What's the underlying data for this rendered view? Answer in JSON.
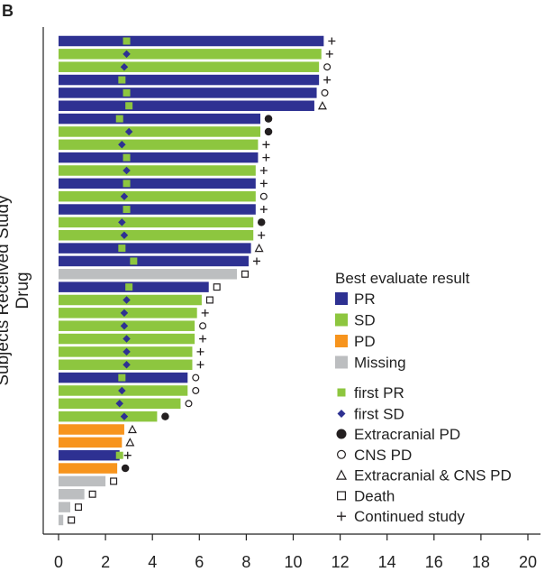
{
  "chart_data": {
    "type": "bar",
    "orientation": "horizontal",
    "panel_label": "B",
    "ylabel": "Subjects Received Study Drug",
    "xlabel": "",
    "xlim": [
      0,
      20
    ],
    "xticks": [
      0,
      2,
      4,
      6,
      8,
      10,
      12,
      14,
      16,
      18,
      20
    ],
    "grid": false,
    "legend_title": "Best evaluate result",
    "legend_position": "right",
    "colors": {
      "PR": "#2e3192",
      "SD": "#8dc63f",
      "PD": "#f7941d",
      "Missing": "#bcbec0",
      "first_PR": "#8dc63f",
      "first_SD": "#2e3192",
      "marker": "#231f20"
    },
    "legend": {
      "best": [
        {
          "key": "PR",
          "label": "PR"
        },
        {
          "key": "SD",
          "label": "SD"
        },
        {
          "key": "PD",
          "label": "PD"
        },
        {
          "key": "Missing",
          "label": "Missing"
        }
      ],
      "first": [
        {
          "key": "first_PR",
          "label": "first PR",
          "shape": "square"
        },
        {
          "key": "first_SD",
          "label": "first SD",
          "shape": "diamond"
        }
      ],
      "events": [
        {
          "key": "extracranial_pd",
          "label": "Extracranial PD",
          "shape": "filled-circle"
        },
        {
          "key": "cns_pd",
          "label": "CNS PD",
          "shape": "open-circle"
        },
        {
          "key": "both_pd",
          "label": "Extracranial & CNS PD",
          "shape": "open-triangle"
        },
        {
          "key": "death",
          "label": "Death",
          "shape": "open-square"
        },
        {
          "key": "continued",
          "label": "Continued study",
          "shape": "plus"
        }
      ]
    },
    "subjects": [
      {
        "best": "PR",
        "duration": 11.3,
        "first": "first_PR",
        "first_time": 2.9,
        "event": "continued"
      },
      {
        "best": "SD",
        "duration": 11.2,
        "first": "first_SD",
        "first_time": 2.9,
        "event": "continued"
      },
      {
        "best": "SD",
        "duration": 11.1,
        "first": "first_SD",
        "first_time": 2.8,
        "event": "cns_pd"
      },
      {
        "best": "PR",
        "duration": 11.1,
        "first": "first_PR",
        "first_time": 2.7,
        "event": "continued"
      },
      {
        "best": "PR",
        "duration": 11.0,
        "first": "first_PR",
        "first_time": 2.9,
        "event": "cns_pd"
      },
      {
        "best": "PR",
        "duration": 10.9,
        "first": "first_PR",
        "first_time": 3.0,
        "event": "both_pd"
      },
      {
        "best": "PR",
        "duration": 8.6,
        "first": "first_PR",
        "first_time": 2.6,
        "event": "extracranial_pd"
      },
      {
        "best": "SD",
        "duration": 8.6,
        "first": "first_SD",
        "first_time": 3.0,
        "event": "extracranial_pd"
      },
      {
        "best": "SD",
        "duration": 8.5,
        "first": "first_SD",
        "first_time": 2.7,
        "event": "continued"
      },
      {
        "best": "PR",
        "duration": 8.5,
        "first": "first_PR",
        "first_time": 2.9,
        "event": "continued"
      },
      {
        "best": "SD",
        "duration": 8.4,
        "first": "first_SD",
        "first_time": 2.9,
        "event": "continued"
      },
      {
        "best": "PR",
        "duration": 8.4,
        "first": "first_PR",
        "first_time": 2.9,
        "event": "continued"
      },
      {
        "best": "SD",
        "duration": 8.4,
        "first": "first_SD",
        "first_time": 2.8,
        "event": "cns_pd"
      },
      {
        "best": "PR",
        "duration": 8.4,
        "first": "first_PR",
        "first_time": 2.9,
        "event": "continued"
      },
      {
        "best": "SD",
        "duration": 8.3,
        "first": "first_SD",
        "first_time": 2.7,
        "event": "extracranial_pd"
      },
      {
        "best": "SD",
        "duration": 8.3,
        "first": "first_SD",
        "first_time": 2.8,
        "event": "continued"
      },
      {
        "best": "PR",
        "duration": 8.2,
        "first": "first_PR",
        "first_time": 2.7,
        "event": "both_pd"
      },
      {
        "best": "PR",
        "duration": 8.1,
        "first": "first_PR",
        "first_time": 3.2,
        "event": "continued"
      },
      {
        "best": "Missing",
        "duration": 7.6,
        "first": null,
        "first_time": null,
        "event": "death"
      },
      {
        "best": "PR",
        "duration": 6.4,
        "first": "first_PR",
        "first_time": 3.0,
        "event": "death"
      },
      {
        "best": "SD",
        "duration": 6.1,
        "first": "first_SD",
        "first_time": 2.9,
        "event": "death"
      },
      {
        "best": "SD",
        "duration": 5.9,
        "first": "first_SD",
        "first_time": 2.8,
        "event": "continued"
      },
      {
        "best": "SD",
        "duration": 5.8,
        "first": "first_SD",
        "first_time": 2.8,
        "event": "cns_pd"
      },
      {
        "best": "SD",
        "duration": 5.8,
        "first": "first_SD",
        "first_time": 2.9,
        "event": "continued"
      },
      {
        "best": "SD",
        "duration": 5.7,
        "first": "first_SD",
        "first_time": 2.9,
        "event": "continued"
      },
      {
        "best": "SD",
        "duration": 5.7,
        "first": "first_SD",
        "first_time": 2.9,
        "event": "continued"
      },
      {
        "best": "PR",
        "duration": 5.5,
        "first": "first_PR",
        "first_time": 2.7,
        "event": "cns_pd"
      },
      {
        "best": "SD",
        "duration": 5.5,
        "first": "first_SD",
        "first_time": 2.7,
        "event": "cns_pd"
      },
      {
        "best": "SD",
        "duration": 5.2,
        "first": "first_SD",
        "first_time": 2.6,
        "event": "cns_pd"
      },
      {
        "best": "SD",
        "duration": 4.2,
        "first": "first_SD",
        "first_time": 2.8,
        "event": "extracranial_pd"
      },
      {
        "best": "PD",
        "duration": 2.8,
        "first": null,
        "first_time": null,
        "event": "both_pd"
      },
      {
        "best": "PD",
        "duration": 2.7,
        "first": null,
        "first_time": null,
        "event": "both_pd"
      },
      {
        "best": "PR",
        "duration": 2.6,
        "first": "first_PR",
        "first_time": 2.6,
        "event": "continued"
      },
      {
        "best": "PD",
        "duration": 2.5,
        "first": null,
        "first_time": null,
        "event": "extracranial_pd"
      },
      {
        "best": "Missing",
        "duration": 2.0,
        "first": null,
        "first_time": null,
        "event": "death"
      },
      {
        "best": "Missing",
        "duration": 1.1,
        "first": null,
        "first_time": null,
        "event": "death"
      },
      {
        "best": "Missing",
        "duration": 0.5,
        "first": null,
        "first_time": null,
        "event": "death"
      },
      {
        "best": "Missing",
        "duration": 0.2,
        "first": null,
        "first_time": null,
        "event": "death"
      }
    ]
  }
}
